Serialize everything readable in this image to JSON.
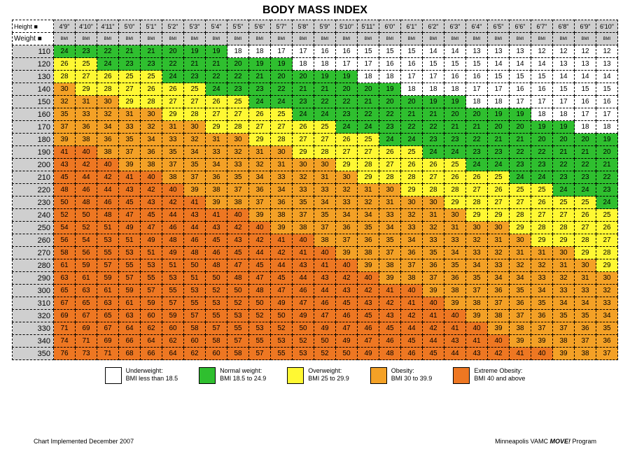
{
  "title": "BODY MASS INDEX",
  "header_labels": {
    "height": "Height",
    "weight": "Weight",
    "sub": "BMI"
  },
  "heights": [
    "4'9\"",
    "4'10\"",
    "4'11\"",
    "5'0\"",
    "5'1\"",
    "5'2\"",
    "5'3\"",
    "5'4\"",
    "5'5\"",
    "5'6\"",
    "5'7\"",
    "5'8\"",
    "5'9\"",
    "5'10\"",
    "5'11\"",
    "6'0\"",
    "6'1\"",
    "6'2\"",
    "6'3\"",
    "6'4\"",
    "6'5\"",
    "6'6\"",
    "6'7\"",
    "6'8\"",
    "6'9\"",
    "6'10\""
  ],
  "weights": [
    110,
    120,
    130,
    140,
    150,
    160,
    170,
    180,
    190,
    200,
    210,
    220,
    230,
    240,
    250,
    260,
    270,
    280,
    290,
    300,
    310,
    320,
    330,
    340,
    350
  ],
  "grid": [
    [
      24,
      23,
      22,
      21,
      21,
      20,
      19,
      19,
      18,
      18,
      17,
      17,
      16,
      16,
      15,
      15,
      15,
      14,
      14,
      13,
      13,
      13,
      12,
      12,
      12,
      12
    ],
    [
      26,
      25,
      24,
      23,
      23,
      22,
      21,
      21,
      20,
      19,
      19,
      18,
      18,
      17,
      17,
      16,
      16,
      15,
      15,
      15,
      14,
      14,
      14,
      13,
      13,
      13
    ],
    [
      28,
      27,
      26,
      25,
      25,
      24,
      23,
      22,
      22,
      21,
      20,
      20,
      19,
      19,
      18,
      18,
      17,
      17,
      16,
      16,
      15,
      15,
      15,
      14,
      14,
      14
    ],
    [
      30,
      29,
      28,
      27,
      26,
      26,
      25,
      24,
      23,
      23,
      22,
      21,
      21,
      20,
      20,
      19,
      18,
      18,
      18,
      17,
      17,
      16,
      16,
      15,
      15,
      15
    ],
    [
      32,
      31,
      30,
      29,
      28,
      27,
      27,
      26,
      25,
      24,
      24,
      23,
      22,
      22,
      21,
      20,
      20,
      19,
      19,
      18,
      18,
      17,
      17,
      17,
      16,
      16
    ],
    [
      35,
      33,
      32,
      31,
      30,
      29,
      28,
      27,
      27,
      26,
      25,
      24,
      24,
      23,
      22,
      22,
      21,
      21,
      20,
      20,
      19,
      19,
      18,
      18,
      17,
      17
    ],
    [
      37,
      36,
      34,
      33,
      32,
      31,
      30,
      29,
      28,
      27,
      27,
      26,
      25,
      24,
      24,
      23,
      22,
      22,
      21,
      21,
      20,
      20,
      19,
      19,
      18,
      18
    ],
    [
      39,
      38,
      36,
      35,
      34,
      33,
      32,
      31,
      30,
      29,
      28,
      27,
      27,
      26,
      25,
      24,
      24,
      23,
      23,
      22,
      21,
      21,
      20,
      20,
      20,
      19
    ],
    [
      41,
      40,
      38,
      37,
      36,
      35,
      34,
      33,
      32,
      31,
      30,
      29,
      28,
      27,
      27,
      26,
      25,
      24,
      24,
      23,
      23,
      22,
      22,
      21,
      21,
      20
    ],
    [
      43,
      42,
      40,
      39,
      38,
      37,
      35,
      34,
      33,
      32,
      31,
      30,
      30,
      29,
      28,
      27,
      26,
      26,
      25,
      24,
      24,
      23,
      23,
      22,
      22,
      21
    ],
    [
      45,
      44,
      42,
      41,
      40,
      38,
      37,
      36,
      35,
      34,
      33,
      32,
      31,
      30,
      29,
      28,
      28,
      27,
      26,
      26,
      25,
      24,
      24,
      23,
      23,
      22
    ],
    [
      48,
      46,
      44,
      43,
      42,
      40,
      39,
      38,
      37,
      36,
      34,
      33,
      33,
      32,
      31,
      30,
      29,
      28,
      28,
      27,
      26,
      25,
      25,
      24,
      24,
      23
    ],
    [
      50,
      48,
      46,
      45,
      43,
      42,
      41,
      39,
      38,
      37,
      36,
      35,
      34,
      33,
      32,
      31,
      30,
      30,
      29,
      28,
      27,
      27,
      26,
      25,
      25,
      24
    ],
    [
      52,
      50,
      48,
      47,
      45,
      44,
      43,
      41,
      40,
      39,
      38,
      37,
      35,
      34,
      34,
      33,
      32,
      31,
      30,
      29,
      29,
      28,
      27,
      27,
      26,
      25
    ],
    [
      54,
      52,
      51,
      49,
      47,
      46,
      44,
      43,
      42,
      40,
      39,
      38,
      37,
      36,
      35,
      34,
      33,
      32,
      31,
      30,
      30,
      29,
      28,
      28,
      27,
      26
    ],
    [
      56,
      54,
      53,
      51,
      49,
      48,
      46,
      45,
      43,
      42,
      41,
      40,
      38,
      37,
      36,
      35,
      34,
      33,
      33,
      32,
      31,
      30,
      29,
      29,
      28,
      27
    ],
    [
      58,
      56,
      55,
      53,
      51,
      49,
      48,
      46,
      45,
      44,
      42,
      41,
      40,
      39,
      38,
      37,
      36,
      35,
      34,
      33,
      32,
      31,
      31,
      30,
      29,
      28
    ],
    [
      61,
      59,
      57,
      55,
      53,
      51,
      50,
      48,
      47,
      45,
      44,
      43,
      41,
      40,
      39,
      38,
      37,
      36,
      35,
      34,
      33,
      32,
      32,
      31,
      30,
      29
    ],
    [
      63,
      61,
      59,
      57,
      55,
      53,
      51,
      50,
      48,
      47,
      45,
      44,
      43,
      42,
      40,
      39,
      38,
      37,
      36,
      35,
      34,
      34,
      33,
      32,
      31,
      30
    ],
    [
      65,
      63,
      61,
      59,
      57,
      55,
      53,
      52,
      50,
      48,
      47,
      46,
      44,
      43,
      42,
      41,
      40,
      39,
      38,
      37,
      36,
      35,
      34,
      33,
      33,
      32
    ],
    [
      67,
      65,
      63,
      61,
      59,
      57,
      55,
      53,
      52,
      50,
      49,
      47,
      46,
      45,
      43,
      42,
      41,
      40,
      39,
      38,
      37,
      36,
      35,
      34,
      34,
      33
    ],
    [
      69,
      67,
      65,
      63,
      60,
      59,
      57,
      55,
      53,
      52,
      50,
      49,
      47,
      46,
      45,
      43,
      42,
      41,
      40,
      39,
      38,
      37,
      36,
      35,
      35,
      34
    ],
    [
      71,
      69,
      67,
      64,
      62,
      60,
      58,
      57,
      55,
      53,
      52,
      50,
      49,
      47,
      46,
      45,
      44,
      42,
      41,
      40,
      39,
      38,
      37,
      37,
      36,
      35
    ],
    [
      74,
      71,
      69,
      66,
      64,
      62,
      60,
      58,
      57,
      55,
      53,
      52,
      50,
      49,
      47,
      46,
      45,
      44,
      43,
      41,
      40,
      39,
      39,
      38,
      37,
      36
    ],
    [
      76,
      73,
      71,
      68,
      66,
      64,
      62,
      60,
      58,
      57,
      55,
      53,
      52,
      50,
      49,
      48,
      46,
      45,
      44,
      43,
      42,
      41,
      40,
      39,
      38,
      37
    ]
  ],
  "thresholds": {
    "underweight_max": 18.4,
    "normal_max": 24.9,
    "overweight_max": 29.9,
    "obesity_max": 39.9
  },
  "colors": {
    "underweight": "#ffffff",
    "normal": "#2fbf2f",
    "overweight": "#fff833",
    "obesity": "#f4a126",
    "extreme": "#ee7722",
    "row_header_bg": "#cfcfcf",
    "border": "#000000"
  },
  "legend": [
    {
      "key": "underweight",
      "title": "Underweight:",
      "range": "BMI less than 18.5"
    },
    {
      "key": "normal",
      "title": "Normal weight:",
      "range": "BMI 18.5 to 24.9"
    },
    {
      "key": "overweight",
      "title": "Overweight:",
      "range": "BMI 25 to 29.9"
    },
    {
      "key": "obesity",
      "title": "Obesity:",
      "range": "BMI 30 to 39.9"
    },
    {
      "key": "extreme",
      "title": "Extreme Obesity:",
      "range": "BMI 40 and above"
    }
  ],
  "footer": {
    "left": "Chart Implemented December 2007",
    "right_prefix": "Minneapolis VAMC ",
    "right_em": "MOVE!",
    "right_suffix": " Program"
  }
}
